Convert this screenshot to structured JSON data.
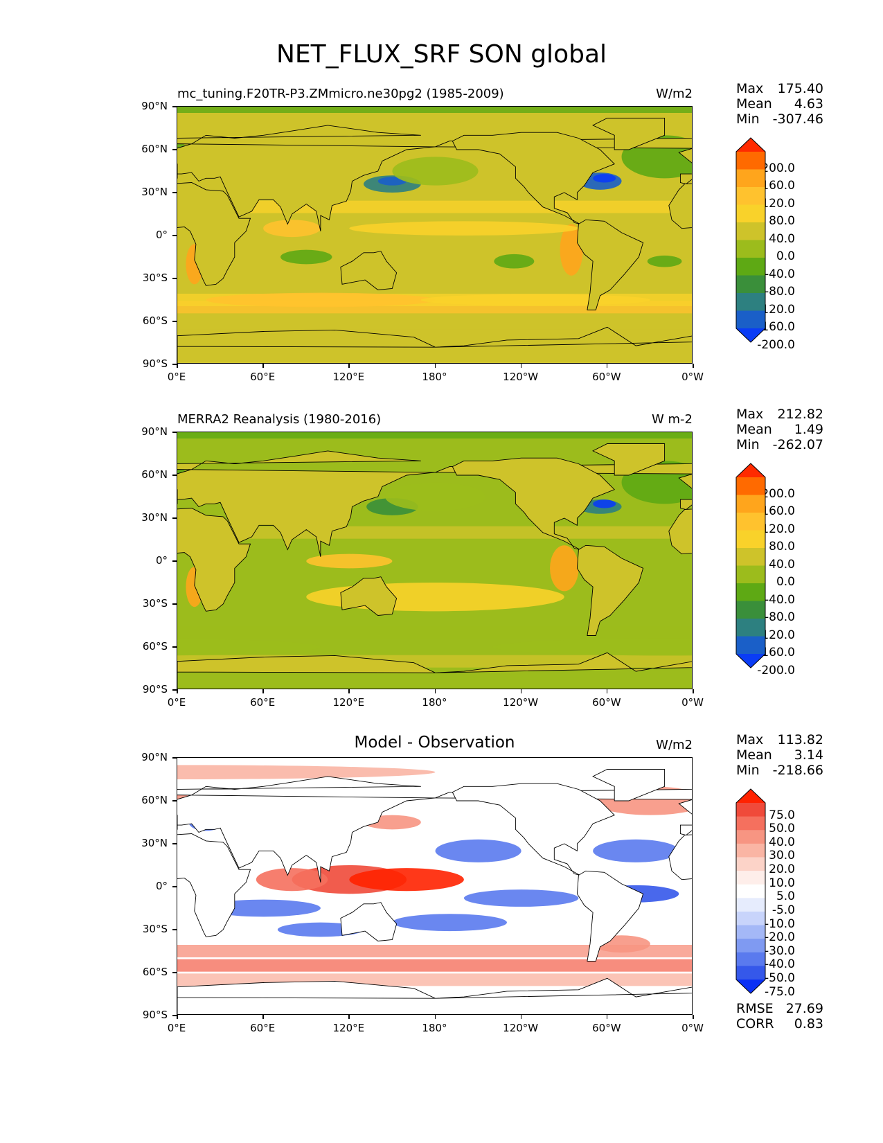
{
  "figure": {
    "title": "NET_FLUX_SRF SON global"
  },
  "axes": {
    "lat_labels": [
      "90°N",
      "60°N",
      "30°N",
      "0°",
      "30°S",
      "60°S",
      "90°S"
    ],
    "lon_labels": [
      "0°E",
      "60°E",
      "120°E",
      "180°",
      "120°W",
      "60°W",
      "0°W"
    ]
  },
  "panels": [
    {
      "id": "model",
      "title_left": "mc_tuning.F20TR-P3.ZMmicro.ne30pg2 (1985-2009)",
      "title_center": "",
      "units": "W/m2",
      "stats": [
        {
          "label": "Max",
          "value": "175.40"
        },
        {
          "label": "Mean",
          "value": "4.63"
        },
        {
          "label": "Min",
          "value": "-307.46"
        }
      ],
      "colorbar": {
        "labels": [
          "200.0",
          "160.0",
          "120.0",
          "80.0",
          "40.0",
          "0.0",
          "-40.0",
          "-80.0",
          "-120.0",
          "-160.0",
          "-200.0"
        ],
        "colors": [
          "#ff2a00",
          "#ff6a00",
          "#ffa51c",
          "#ffc22e",
          "#f9d22a",
          "#cec32a",
          "#9cbc1c",
          "#5ea914",
          "#3a8f3a",
          "#2d8080",
          "#1a5fc8",
          "#0a3cf5"
        ]
      }
    },
    {
      "id": "obs",
      "title_left": "MERRA2 Reanalysis (1980-2016)",
      "title_center": "",
      "units": "W m-2",
      "stats": [
        {
          "label": "Max",
          "value": "212.82"
        },
        {
          "label": "Mean",
          "value": "1.49"
        },
        {
          "label": "Min",
          "value": "-262.07"
        }
      ],
      "colorbar": {
        "labels": [
          "200.0",
          "160.0",
          "120.0",
          "80.0",
          "40.0",
          "0.0",
          "-40.0",
          "-80.0",
          "-120.0",
          "-160.0",
          "-200.0"
        ],
        "colors": [
          "#ff2a00",
          "#ff6a00",
          "#ffa51c",
          "#ffc22e",
          "#f9d22a",
          "#cec32a",
          "#9cbc1c",
          "#5ea914",
          "#3a8f3a",
          "#2d8080",
          "#1a5fc8",
          "#0a3cf5"
        ]
      }
    },
    {
      "id": "diff",
      "title_left": "",
      "title_center": "Model - Observation",
      "units": "W/m2",
      "stats": [
        {
          "label": "Max",
          "value": "113.82"
        },
        {
          "label": "Mean",
          "value": "3.14"
        },
        {
          "label": "Min",
          "value": "-218.66"
        }
      ],
      "extra_stats": [
        {
          "label": "RMSE",
          "value": "27.69"
        },
        {
          "label": "CORR",
          "value": "0.83"
        }
      ],
      "colorbar": {
        "labels": [
          "75.0",
          "50.0",
          "40.0",
          "30.0",
          "20.0",
          "10.0",
          "5.0",
          "-5.0",
          "-10.0",
          "-20.0",
          "-30.0",
          "-40.0",
          "-50.0",
          "-75.0"
        ],
        "colors": [
          "#ff2200",
          "#f04a3a",
          "#f5705e",
          "#f79582",
          "#fab5a4",
          "#fcd3c8",
          "#feeeea",
          "#ffffff",
          "#e6ecfd",
          "#c8d4fb",
          "#a4b8f7",
          "#7f9af2",
          "#5a7aee",
          "#3558ea",
          "#0a30f5"
        ]
      }
    }
  ]
}
